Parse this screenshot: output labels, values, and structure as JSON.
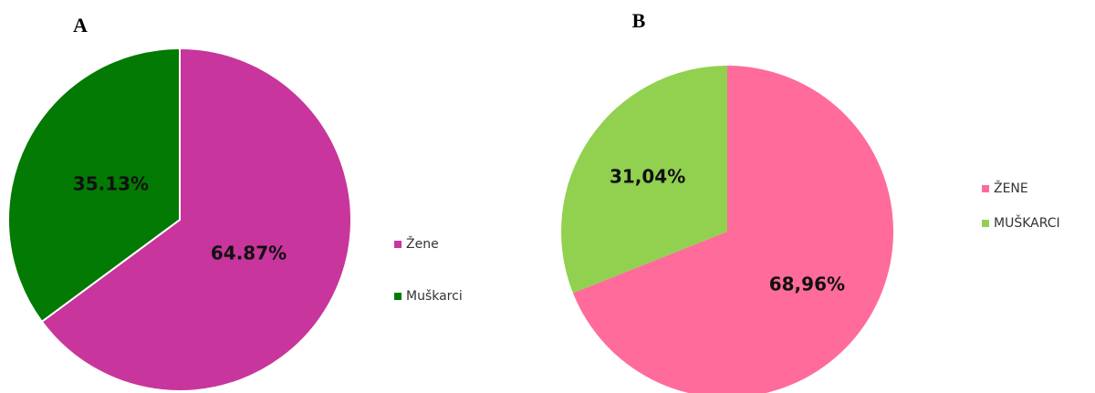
{
  "chart_data": [
    {
      "type": "pie",
      "title": "A",
      "categories": [
        "Žene",
        "Muškarci"
      ],
      "values": [
        64.87,
        35.13
      ],
      "value_labels": [
        "64.87%",
        "35.13%"
      ],
      "colors": [
        "#c8359c",
        "#037a03"
      ]
    },
    {
      "type": "pie",
      "title": "B",
      "categories": [
        "ŽENE",
        "MUŠKARCI"
      ],
      "values": [
        68.96,
        31.04
      ],
      "value_labels": [
        "68,96%",
        "31,04%"
      ],
      "colors": [
        "#ff6b9a",
        "#92d050"
      ]
    }
  ]
}
